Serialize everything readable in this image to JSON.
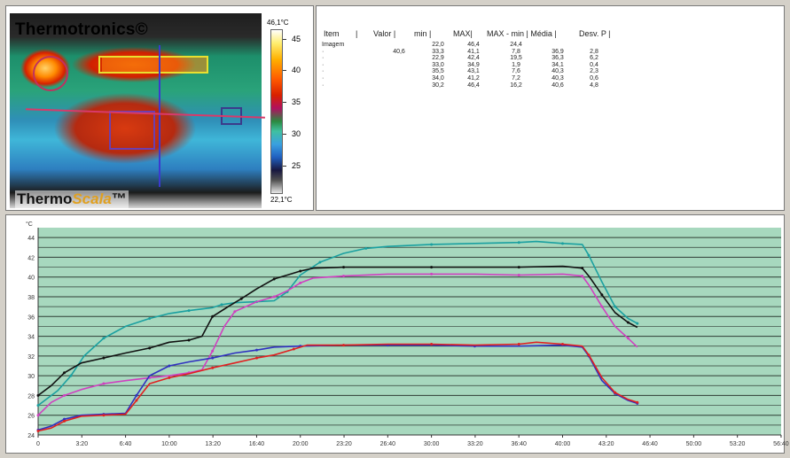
{
  "thermal": {
    "logo_top": "Thermotronics©",
    "logo_bottom_a": "Thermo",
    "logo_bottom_b": "Scala",
    "logo_bottom_c": "™",
    "scale_max": "46,1°C",
    "scale_min": "22,1°C",
    "scale_ticks": [
      "45",
      "40",
      "35",
      "30",
      "25"
    ]
  },
  "stats": {
    "headers": [
      "Item",
      "|",
      "Valor |",
      "min |",
      "MAX|",
      "MAX - min | Média |",
      "Desv. P |"
    ],
    "rows": [
      {
        "item": "Imagem",
        "valor": "",
        "min": "22,0",
        "max": "46,4",
        "maxmin": "24,4",
        "media": "",
        "desv": ""
      },
      {
        "item": "·",
        "valor": "40,6",
        "min": "33,3",
        "max": "41,1",
        "maxmin": "7,8",
        "media": "36,9",
        "desv": "2,8"
      },
      {
        "item": "·",
        "valor": "",
        "min": "22,9",
        "max": "42,4",
        "maxmin": "19,5",
        "media": "36,3",
        "desv": "6,2"
      },
      {
        "item": "·",
        "valor": "",
        "min": "33,0",
        "max": "34,9",
        "maxmin": "1,9",
        "media": "34,1",
        "desv": "0,4"
      },
      {
        "item": "·",
        "valor": "",
        "min": "35,5",
        "max": "43,1",
        "maxmin": "7,6",
        "media": "40,3",
        "desv": "2,3"
      },
      {
        "item": "·",
        "valor": "",
        "min": "34,0",
        "max": "41,2",
        "maxmin": "7,2",
        "media": "40,3",
        "desv": "0,6"
      },
      {
        "item": "·",
        "valor": "",
        "min": "30,2",
        "max": "46,4",
        "maxmin": "16,2",
        "media": "40,6",
        "desv": "4,8"
      }
    ]
  },
  "chart_data": {
    "type": "line",
    "ylabel": "°C",
    "ylim": [
      24,
      45
    ],
    "yticks": [
      "24",
      "26",
      "28",
      "30",
      "32",
      "34",
      "36",
      "38",
      "40",
      "42",
      "44"
    ],
    "xticks": [
      "0",
      "3:20",
      "6:40",
      "10:00",
      "13:20",
      "16:40",
      "20:00",
      "23:20",
      "26:40",
      "30:00",
      "33:20",
      "36:40",
      "40:00",
      "43:20",
      "46:40",
      "50:00",
      "53:20",
      "56:40"
    ],
    "xlim_minutes": [
      0,
      56.67
    ],
    "grid": true,
    "colors": {
      "background": "#a7d8be",
      "grid": "#2f3d34"
    },
    "series": [
      {
        "color": "#1aa0a0",
        "points": [
          [
            0,
            27.0
          ],
          [
            1.5,
            28.5
          ],
          [
            2.5,
            30
          ],
          [
            3.5,
            32
          ],
          [
            5,
            33.8
          ],
          [
            6.67,
            35
          ],
          [
            8.5,
            35.8
          ],
          [
            10,
            36.3
          ],
          [
            11.5,
            36.6
          ],
          [
            13.3,
            36.9
          ],
          [
            14,
            37.2
          ],
          [
            15,
            37.4
          ],
          [
            16.67,
            37.5
          ],
          [
            18,
            37.6
          ],
          [
            19,
            38.5
          ],
          [
            20,
            40.2
          ],
          [
            21.5,
            41.5
          ],
          [
            23.3,
            42.4
          ],
          [
            25,
            42.9
          ],
          [
            26.67,
            43.1
          ],
          [
            30,
            43.3
          ],
          [
            33.3,
            43.4
          ],
          [
            36.67,
            43.5
          ],
          [
            38,
            43.6
          ],
          [
            40,
            43.4
          ],
          [
            41.5,
            43.3
          ],
          [
            42,
            42.2
          ],
          [
            43,
            39.5
          ],
          [
            44,
            37
          ],
          [
            45,
            35.8
          ],
          [
            45.7,
            35.3
          ]
        ]
      },
      {
        "color": "#111111",
        "points": [
          [
            0,
            28.0
          ],
          [
            1,
            29
          ],
          [
            2,
            30.3
          ],
          [
            3.3,
            31.3
          ],
          [
            5,
            31.8
          ],
          [
            6.67,
            32.3
          ],
          [
            8.5,
            32.8
          ],
          [
            10,
            33.4
          ],
          [
            11.5,
            33.6
          ],
          [
            12.5,
            34
          ],
          [
            13.3,
            36
          ],
          [
            14.5,
            37
          ],
          [
            15.5,
            37.8
          ],
          [
            16.67,
            38.8
          ],
          [
            18,
            39.8
          ],
          [
            19,
            40.2
          ],
          [
            20,
            40.6
          ],
          [
            21,
            40.9
          ],
          [
            23.3,
            41
          ],
          [
            26.67,
            41
          ],
          [
            30,
            41
          ],
          [
            33.3,
            41
          ],
          [
            36.67,
            41
          ],
          [
            40,
            41.1
          ],
          [
            41.5,
            40.9
          ],
          [
            42,
            40.1
          ],
          [
            43,
            38.2
          ],
          [
            44,
            36.4
          ],
          [
            45,
            35.4
          ],
          [
            45.7,
            34.9
          ]
        ]
      },
      {
        "color": "#d040c0",
        "points": [
          [
            0,
            26.0
          ],
          [
            1,
            27.3
          ],
          [
            2,
            28
          ],
          [
            3.3,
            28.6
          ],
          [
            5,
            29.2
          ],
          [
            6.67,
            29.5
          ],
          [
            8.5,
            29.8
          ],
          [
            10,
            30
          ],
          [
            11.5,
            30.3
          ],
          [
            12.5,
            30.6
          ],
          [
            13.3,
            32.5
          ],
          [
            14.2,
            35
          ],
          [
            15,
            36.5
          ],
          [
            16.67,
            37.5
          ],
          [
            18,
            38
          ],
          [
            19,
            38.6
          ],
          [
            20,
            39.4
          ],
          [
            21,
            39.9
          ],
          [
            23.3,
            40.1
          ],
          [
            26.67,
            40.3
          ],
          [
            30,
            40.3
          ],
          [
            33.3,
            40.3
          ],
          [
            36.67,
            40.2
          ],
          [
            40,
            40.3
          ],
          [
            41.5,
            40.1
          ],
          [
            42,
            39.2
          ],
          [
            43,
            37
          ],
          [
            44,
            35
          ],
          [
            45,
            33.8
          ],
          [
            45.7,
            32.9
          ]
        ]
      },
      {
        "color": "#3030c0",
        "points": [
          [
            0,
            24.5
          ],
          [
            1,
            24.9
          ],
          [
            2,
            25.6
          ],
          [
            3.3,
            26
          ],
          [
            5,
            26.1
          ],
          [
            6.67,
            26.2
          ],
          [
            7.5,
            28
          ],
          [
            8.5,
            30
          ],
          [
            10,
            31
          ],
          [
            11.5,
            31.4
          ],
          [
            13.3,
            31.8
          ],
          [
            15,
            32.3
          ],
          [
            16.67,
            32.6
          ],
          [
            18,
            32.9
          ],
          [
            20,
            33
          ],
          [
            23.3,
            33.1
          ],
          [
            26.67,
            33.1
          ],
          [
            30,
            33.1
          ],
          [
            33.3,
            33
          ],
          [
            36.67,
            33
          ],
          [
            40,
            33.1
          ],
          [
            41.5,
            32.9
          ],
          [
            42,
            32
          ],
          [
            43,
            29.5
          ],
          [
            44,
            28.2
          ],
          [
            45,
            27.5
          ],
          [
            45.7,
            27.2
          ]
        ]
      },
      {
        "color": "#e02020",
        "points": [
          [
            0,
            24.4
          ],
          [
            1,
            24.7
          ],
          [
            2,
            25.4
          ],
          [
            3.3,
            25.9
          ],
          [
            5,
            26
          ],
          [
            6.67,
            26.1
          ],
          [
            7.5,
            27.5
          ],
          [
            8.5,
            29.2
          ],
          [
            10,
            29.8
          ],
          [
            11.5,
            30.2
          ],
          [
            13.3,
            30.8
          ],
          [
            15,
            31.3
          ],
          [
            16.67,
            31.8
          ],
          [
            18,
            32.1
          ],
          [
            19.5,
            32.7
          ],
          [
            20.5,
            33.1
          ],
          [
            23.3,
            33.1
          ],
          [
            26.67,
            33.2
          ],
          [
            30,
            33.2
          ],
          [
            33.3,
            33.1
          ],
          [
            36.67,
            33.2
          ],
          [
            38,
            33.4
          ],
          [
            40,
            33.2
          ],
          [
            41.5,
            33
          ],
          [
            42,
            32.1
          ],
          [
            43,
            29.8
          ],
          [
            44,
            28.3
          ],
          [
            45,
            27.6
          ],
          [
            45.7,
            27.3
          ]
        ]
      }
    ]
  }
}
